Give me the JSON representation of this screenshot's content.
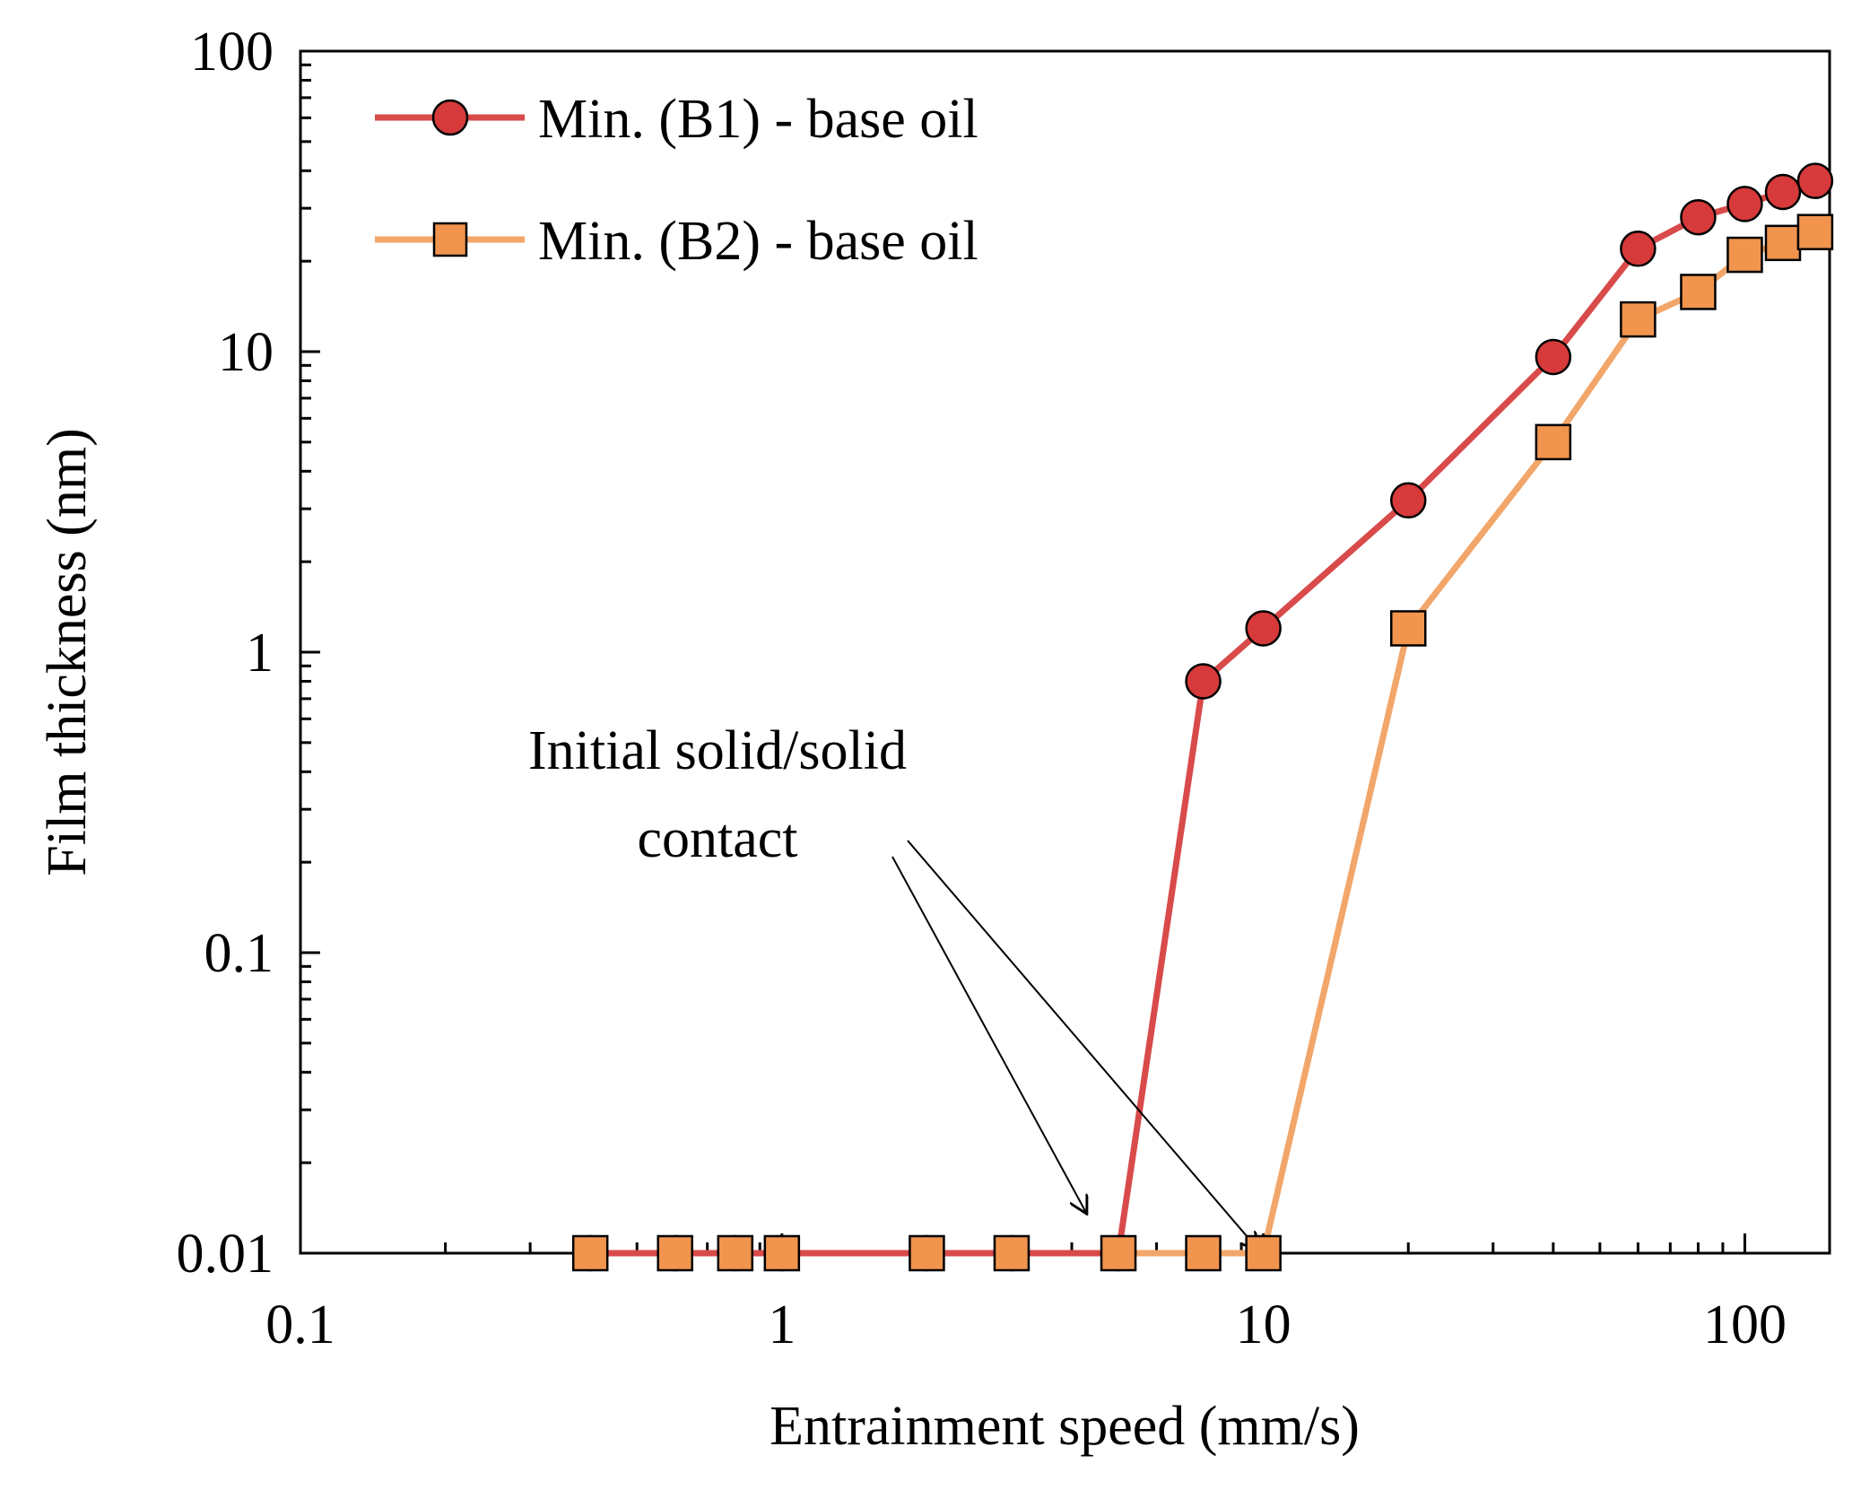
{
  "chart_data": {
    "type": "line",
    "title": "",
    "xlabel": "Entrainment speed (mm/s)",
    "ylabel": "Film thickness (nm)",
    "xscale": "log",
    "yscale": "log",
    "xlim": [
      0.1,
      150
    ],
    "ylim": [
      0.01,
      100
    ],
    "xticks": [
      0.1,
      1,
      10,
      100
    ],
    "xtick_labels": [
      "0.1",
      "1",
      "10",
      "100"
    ],
    "yticks": [
      0.01,
      0.1,
      1,
      10,
      100
    ],
    "ytick_labels": [
      "0.01",
      "0.1",
      "1",
      "10",
      "100"
    ],
    "grid": false,
    "legend_position": "top-left",
    "series": [
      {
        "name": "Min. (B1) - base oil",
        "marker": "circle",
        "color": "#d94a4a",
        "marker_color": "#d63a3a",
        "x": [
          0.4,
          0.6,
          0.8,
          1,
          2,
          3,
          5,
          7.5,
          10,
          20,
          40,
          60,
          80,
          100,
          120,
          140
        ],
        "y": [
          0.01,
          0.01,
          0.01,
          0.01,
          0.01,
          0.01,
          0.01,
          0.8,
          1.2,
          3.2,
          9.6,
          22,
          28,
          31,
          34,
          37
        ]
      },
      {
        "name": "Min. (B2) - base oil",
        "marker": "square",
        "color": "#f2a66a",
        "marker_color": "#f0944e",
        "x": [
          0.4,
          0.6,
          0.8,
          1,
          2,
          3,
          5,
          7.5,
          10,
          20,
          40,
          60,
          80,
          100,
          120,
          140
        ],
        "y": [
          0.01,
          0.01,
          0.01,
          0.01,
          0.01,
          0.01,
          0.01,
          0.01,
          0.01,
          1.2,
          5.0,
          12.8,
          15.8,
          21,
          23,
          25
        ]
      }
    ],
    "annotations": [
      {
        "text_lines": [
          "Initial solid/solid",
          "contact"
        ],
        "arrow_targets": [
          [
            4.3,
            0.0135
          ],
          [
            9.8,
            0.0102
          ]
        ]
      }
    ]
  }
}
